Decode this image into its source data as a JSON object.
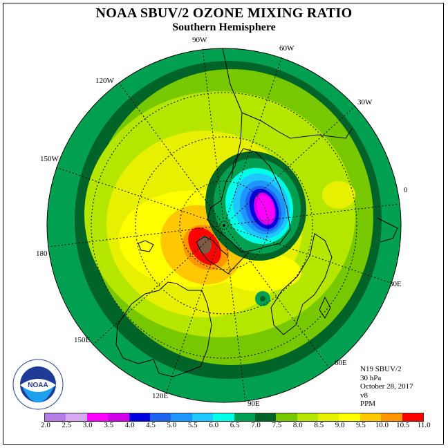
{
  "title": "NOAA SBUV/2 OZONE MIXING RATIO",
  "subtitle": "Southern Hemisphere",
  "longitude_labels": [
    "90W",
    "60W",
    "30W",
    "0",
    "30E",
    "60E",
    "90E",
    "120E",
    "150E",
    "180",
    "150W",
    "120W"
  ],
  "info": {
    "satellite": "N19 SBUV/2",
    "level": "30 hPa",
    "date": "October 28, 2017",
    "version": "v8",
    "units": "PPM"
  },
  "colorbar": {
    "ticks": [
      "2.0",
      "2.5",
      "3.0",
      "3.5",
      "4.0",
      "4.5",
      "5.0",
      "5.5",
      "6.0",
      "6.5",
      "7.0",
      "7.5",
      "8.0",
      "8.5",
      "9.0",
      "9.5",
      "10.0",
      "10.5",
      "11.0"
    ],
    "colors": [
      "#b57ee6",
      "#d8a8f0",
      "#ff00ff",
      "#d200e6",
      "#0000e0",
      "#1e64f0",
      "#1e96ff",
      "#1ec8ff",
      "#00ffe6",
      "#00a050",
      "#006428",
      "#78c800",
      "#b4e600",
      "#e6f000",
      "#ffff00",
      "#ffc800",
      "#ff9600",
      "#ff0000",
      "#7d5a46"
    ]
  },
  "logo": {
    "name": "noaa-logo",
    "text": "NOAA"
  }
}
